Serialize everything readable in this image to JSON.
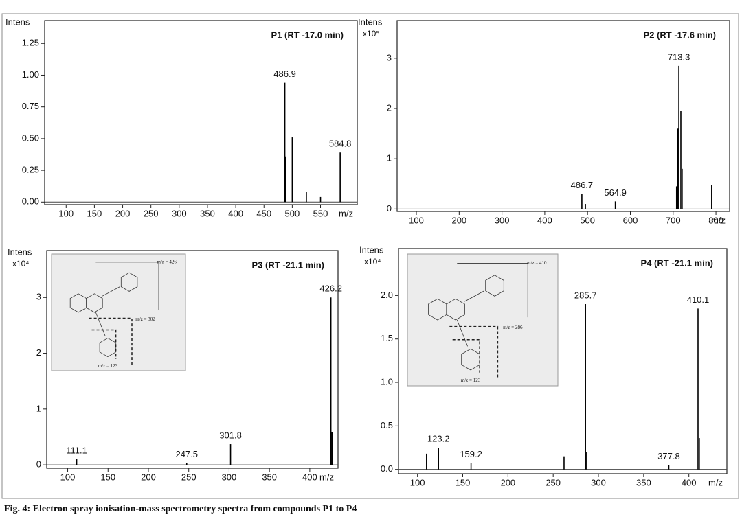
{
  "chart_data": [
    {
      "type": "bar",
      "title": "P1 (RT -17.0 min)",
      "ylabel": "Intens",
      "xlabel": "m/z",
      "x": [
        486.9,
        488,
        500,
        525,
        550,
        584.8
      ],
      "values": [
        0.94,
        0.36,
        0.51,
        0.08,
        0.04,
        0.39
      ],
      "x_labels": [
        "486.9",
        null,
        null,
        null,
        null,
        "584.8"
      ],
      "color": "#000000",
      "xlim": [
        62,
        615
      ],
      "xticks": [
        100,
        150,
        200,
        250,
        300,
        350,
        400,
        450,
        500,
        550
      ],
      "ylim": [
        -0.02,
        1.43
      ],
      "yticks": [
        {
          "value": 0,
          "label": "0.00"
        },
        0.25,
        {
          "value": 0.5,
          "label": "0.50"
        },
        0.75,
        {
          "value": 1,
          "label": "1.00"
        },
        1.25
      ]
    },
    {
      "type": "bar",
      "title": "P2 (RT -17.6 min)",
      "ylabel": "Intens",
      "yscale_label": "x10⁵",
      "xlabel": "m/z",
      "x": [
        486.7,
        495,
        564.9,
        713.3,
        708,
        711,
        718,
        721,
        790
      ],
      "values": [
        0.3,
        0.1,
        0.15,
        2.85,
        0.45,
        1.6,
        1.95,
        0.8,
        0.47
      ],
      "x_labels": [
        "486.7",
        null,
        "564.9",
        "713.3",
        null,
        null,
        null,
        null,
        null
      ],
      "color": "#000000",
      "xlim": [
        55,
        832
      ],
      "xticks": [
        100,
        200,
        300,
        400,
        500,
        600,
        700,
        800
      ],
      "ylim": [
        -0.05,
        3.75
      ],
      "yticks": [
        0,
        1,
        2,
        3
      ]
    },
    {
      "type": "bar",
      "title": "P3 (RT -21.1 min)",
      "ylabel": "Intens",
      "yscale_label": "x10⁴",
      "xlabel": "m/z",
      "x": [
        111.1,
        247.5,
        301.8,
        426.2,
        427.5
      ],
      "values": [
        0.1,
        0.03,
        0.37,
        3.0,
        0.58
      ],
      "x_labels": [
        "111.1",
        "247.5",
        "301.8",
        "426.2",
        null
      ],
      "color": "#000000",
      "xlim": [
        74,
        435
      ],
      "xticks": [
        100,
        150,
        200,
        250,
        300,
        350,
        400
      ],
      "ylim": [
        -0.06,
        3.84
      ],
      "yticks": [
        0,
        1,
        2,
        3
      ],
      "inset_labels": [
        "m/z = 426",
        "m/z = 302",
        "m/z = 123"
      ]
    },
    {
      "type": "bar",
      "title": "P4 (RT -21.1 min)",
      "ylabel": "Intens",
      "yscale_label": "x10⁴",
      "xlabel": "m/z",
      "x": [
        110,
        123.2,
        159.2,
        262,
        285.7,
        287,
        377.8,
        410.1,
        411.5
      ],
      "values": [
        0.18,
        0.25,
        0.07,
        0.15,
        1.9,
        0.2,
        0.05,
        1.85,
        0.36
      ],
      "x_labels": [
        null,
        "123.2",
        "159.2",
        null,
        "285.7",
        null,
        "377.8",
        "410.1",
        null
      ],
      "color": "#000000",
      "xlim": [
        79,
        442
      ],
      "xticks": [
        100,
        150,
        200,
        250,
        300,
        350,
        400
      ],
      "ylim": [
        -0.05,
        2.54
      ],
      "yticks": [
        {
          "value": 0,
          "label": "0.0"
        },
        0.5,
        {
          "value": 1,
          "label": "1.0"
        },
        1.5,
        {
          "value": 2,
          "label": "2.0"
        }
      ],
      "inset_labels": [
        "m/z = 410",
        "m/z = 286",
        "m/z = 123"
      ]
    }
  ],
  "caption": "Fig. 4: Electron spray ionisation-mass spectrometry spectra from compounds P1 to P4"
}
